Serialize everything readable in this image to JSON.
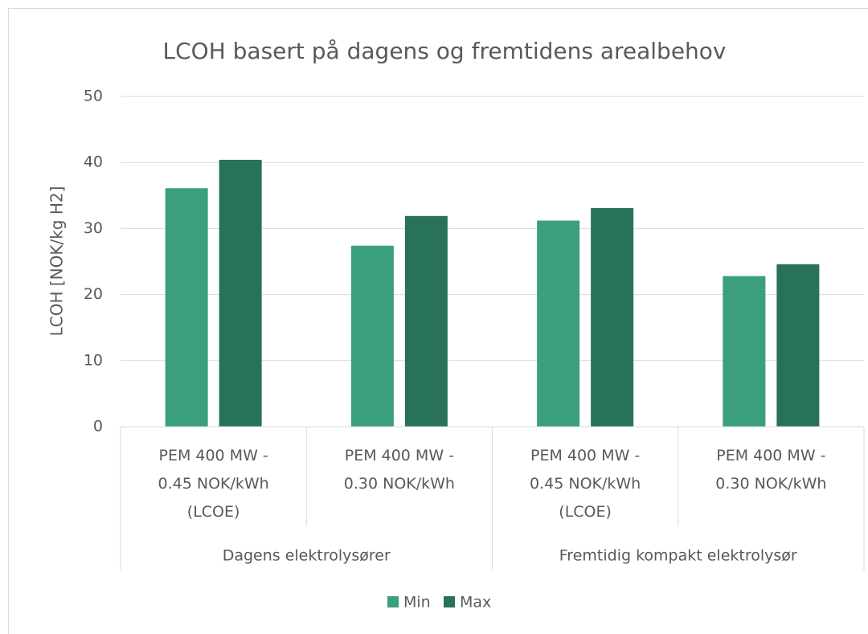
{
  "chart_data": {
    "type": "bar",
    "title": "LCOH basert på dagens og fremtidens arealbehov",
    "y_label": "LCOH [NOK/kg H2]",
    "categories": [
      "PEM 400 MW - 0.45 NOK/kWh (LCOE)",
      "PEM 400 MW - 0.30 NOK/kWh",
      "PEM 400 MW - 0.45 NOK/kWh (LCOE)",
      "PEM 400 MW - 0.30 NOK/kWh"
    ],
    "category_groups": [
      "Dagens elektrolysører",
      "Fremtidig kompakt elektrolysør"
    ],
    "series": [
      {
        "name": "Min",
        "color": "#3a9e7f",
        "values": [
          36.1,
          27.4,
          31.2,
          22.8
        ]
      },
      {
        "name": "Max",
        "color": "#287257",
        "values": [
          40.4,
          31.9,
          33.1,
          24.6
        ]
      }
    ],
    "ylim": [
      0,
      50
    ],
    "yticks": [
      0,
      10,
      20,
      30,
      40,
      50
    ],
    "grid": true,
    "legend": "bottom"
  }
}
